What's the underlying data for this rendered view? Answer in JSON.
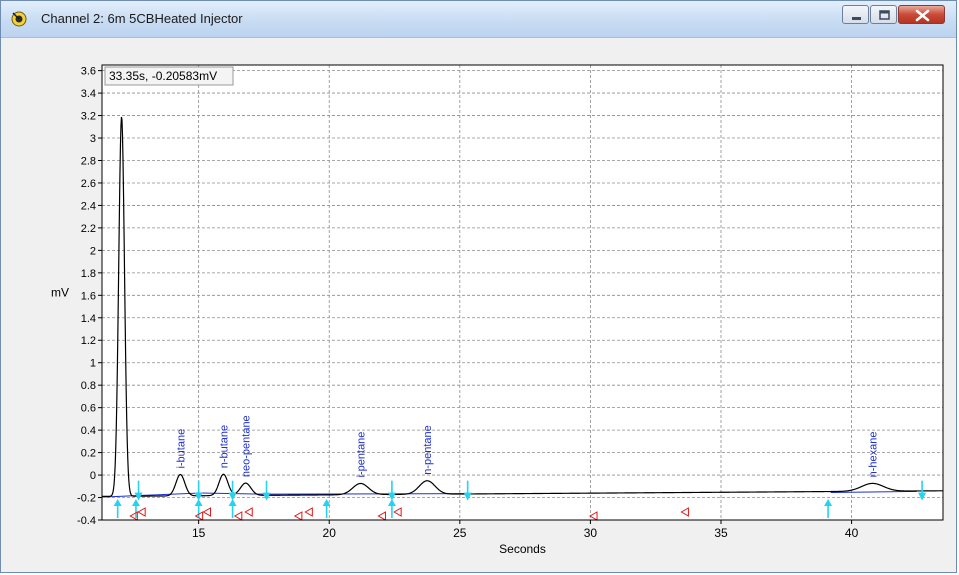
{
  "window": {
    "title": "Channel 2: 6m 5CBHeated Injector"
  },
  "cursor_readout": "33.35s, -0.20583mV",
  "chart_data": {
    "type": "line",
    "title": "",
    "xlabel": "Seconds",
    "ylabel": "mV",
    "xlim": [
      11.3,
      43.5
    ],
    "ylim": [
      -0.4,
      3.65
    ],
    "x_ticks": [
      15,
      20,
      25,
      30,
      35,
      40
    ],
    "y_ticks": [
      -0.4,
      -0.2,
      0,
      0.2,
      0.4,
      0.6,
      0.8,
      1,
      1.2,
      1.4,
      1.6,
      1.8,
      2,
      2.2,
      2.4,
      2.6,
      2.8,
      3,
      3.2,
      3.4,
      3.6
    ],
    "grid": true,
    "baseline": {
      "start": -0.19,
      "end": -0.14
    },
    "series": [
      {
        "peaks": [
          {
            "center": 12.05,
            "height": 3.38,
            "sigma": 0.11,
            "label": ""
          },
          {
            "center": 14.3,
            "height": 0.19,
            "sigma": 0.17,
            "label": "i-butane"
          },
          {
            "center": 15.95,
            "height": 0.19,
            "sigma": 0.17,
            "label": "n-butane"
          },
          {
            "center": 16.8,
            "height": 0.11,
            "sigma": 0.2,
            "label": "neo-pentane"
          },
          {
            "center": 21.2,
            "height": 0.1,
            "sigma": 0.3,
            "label": "i-pentane"
          },
          {
            "center": 23.75,
            "height": 0.12,
            "sigma": 0.3,
            "label": "n-pentane"
          },
          {
            "center": 40.8,
            "height": 0.07,
            "sigma": 0.42,
            "label": "n-hexane"
          }
        ]
      }
    ],
    "integration_baselines": [
      {
        "x": [
          11.4,
          15.1
        ],
        "y": [
          -0.195,
          -0.16
        ]
      },
      {
        "x": [
          15.1,
          17.6
        ],
        "y": [
          -0.16,
          -0.17
        ]
      },
      {
        "x": [
          17.6,
          25.3
        ],
        "y": [
          -0.17,
          -0.165
        ]
      },
      {
        "x": [
          39.2,
          42.5
        ],
        "y": [
          -0.155,
          -0.145
        ]
      }
    ],
    "peak_markers": {
      "start": [
        11.9,
        12.6,
        15.0,
        16.3,
        19.9,
        22.4,
        39.1
      ],
      "end": [
        12.7,
        15.0,
        16.3,
        17.6,
        22.4,
        25.3,
        42.7
      ]
    },
    "event_markers": [
      12.5,
      12.8,
      15.0,
      15.3,
      16.5,
      16.9,
      18.8,
      19.2,
      22.0,
      22.6,
      30.1,
      33.6
    ]
  }
}
